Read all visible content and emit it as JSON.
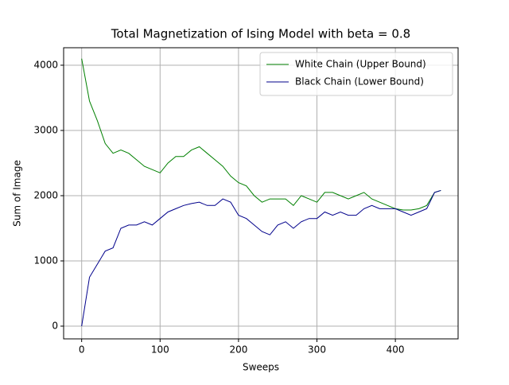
{
  "chart_data": {
    "type": "line",
    "title": "Total Magnetization of Ising Model with beta = 0.8",
    "x_label": "Sweeps",
    "y_label": "Sum of Image",
    "x": [
      0,
      10,
      20,
      30,
      40,
      50,
      60,
      70,
      80,
      90,
      100,
      110,
      120,
      130,
      140,
      150,
      160,
      170,
      180,
      190,
      200,
      210,
      220,
      230,
      240,
      250,
      260,
      270,
      280,
      290,
      300,
      310,
      320,
      330,
      340,
      350,
      360,
      370,
      380,
      390,
      400,
      410,
      420,
      430,
      440,
      450,
      458
    ],
    "series": [
      {
        "name": "White Chain (Upper Bound)",
        "color": "#008000",
        "values": [
          4100,
          3450,
          3150,
          2800,
          2650,
          2700,
          2650,
          2550,
          2450,
          2400,
          2350,
          2500,
          2600,
          2600,
          2700,
          2750,
          2650,
          2550,
          2450,
          2300,
          2200,
          2150,
          2000,
          1900,
          1950,
          1950,
          1950,
          1850,
          2000,
          1950,
          1900,
          2050,
          2050,
          2000,
          1950,
          2000,
          2050,
          1950,
          1900,
          1850,
          1800,
          1780,
          1780,
          1800,
          1850,
          2050,
          2080
        ]
      },
      {
        "name": "Black Chain (Lower Bound)",
        "color": "#00008b",
        "values": [
          0,
          750,
          950,
          1150,
          1200,
          1500,
          1550,
          1550,
          1600,
          1550,
          1650,
          1750,
          1800,
          1850,
          1880,
          1900,
          1850,
          1850,
          1950,
          1900,
          1700,
          1650,
          1550,
          1450,
          1400,
          1550,
          1600,
          1500,
          1600,
          1650,
          1650,
          1750,
          1700,
          1750,
          1700,
          1700,
          1800,
          1850,
          1800,
          1800,
          1800,
          1750,
          1700,
          1750,
          1800,
          2050,
          2080
        ]
      }
    ],
    "xlim": [
      -23,
      480
    ],
    "ylim": [
      -195,
      4268
    ],
    "xticks": [
      0,
      100,
      200,
      300,
      400
    ],
    "yticks": [
      0,
      1000,
      2000,
      3000,
      4000
    ],
    "grid": true,
    "legend": "upper right"
  }
}
